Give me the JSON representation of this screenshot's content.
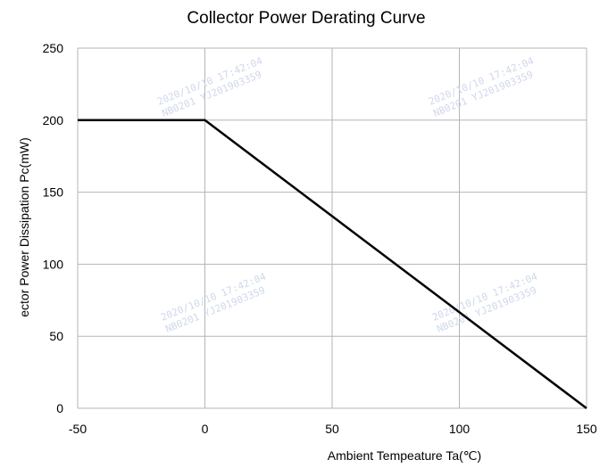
{
  "chart_data": {
    "type": "line",
    "title": "Collector Power Derating Curve",
    "xlabel": "Ambient Tempeature Ta(℃)",
    "ylabel": "ector Power Dissipation   Pc(mW)",
    "xlim": [
      -50,
      150
    ],
    "ylim": [
      0,
      250
    ],
    "grid": true,
    "x_ticks": [
      "-50",
      "0",
      "50",
      "100",
      "150"
    ],
    "y_ticks": [
      "0",
      "50",
      "100",
      "150",
      "200",
      "250"
    ],
    "series": [
      {
        "x": [
          -50,
          0,
          150
        ],
        "y": [
          200,
          200,
          0
        ]
      }
    ]
  },
  "watermark": {
    "lines": [
      "2020/10/10  17:42:04",
      "NB0201  YJ201903359"
    ],
    "color": "#cfd8ea"
  }
}
